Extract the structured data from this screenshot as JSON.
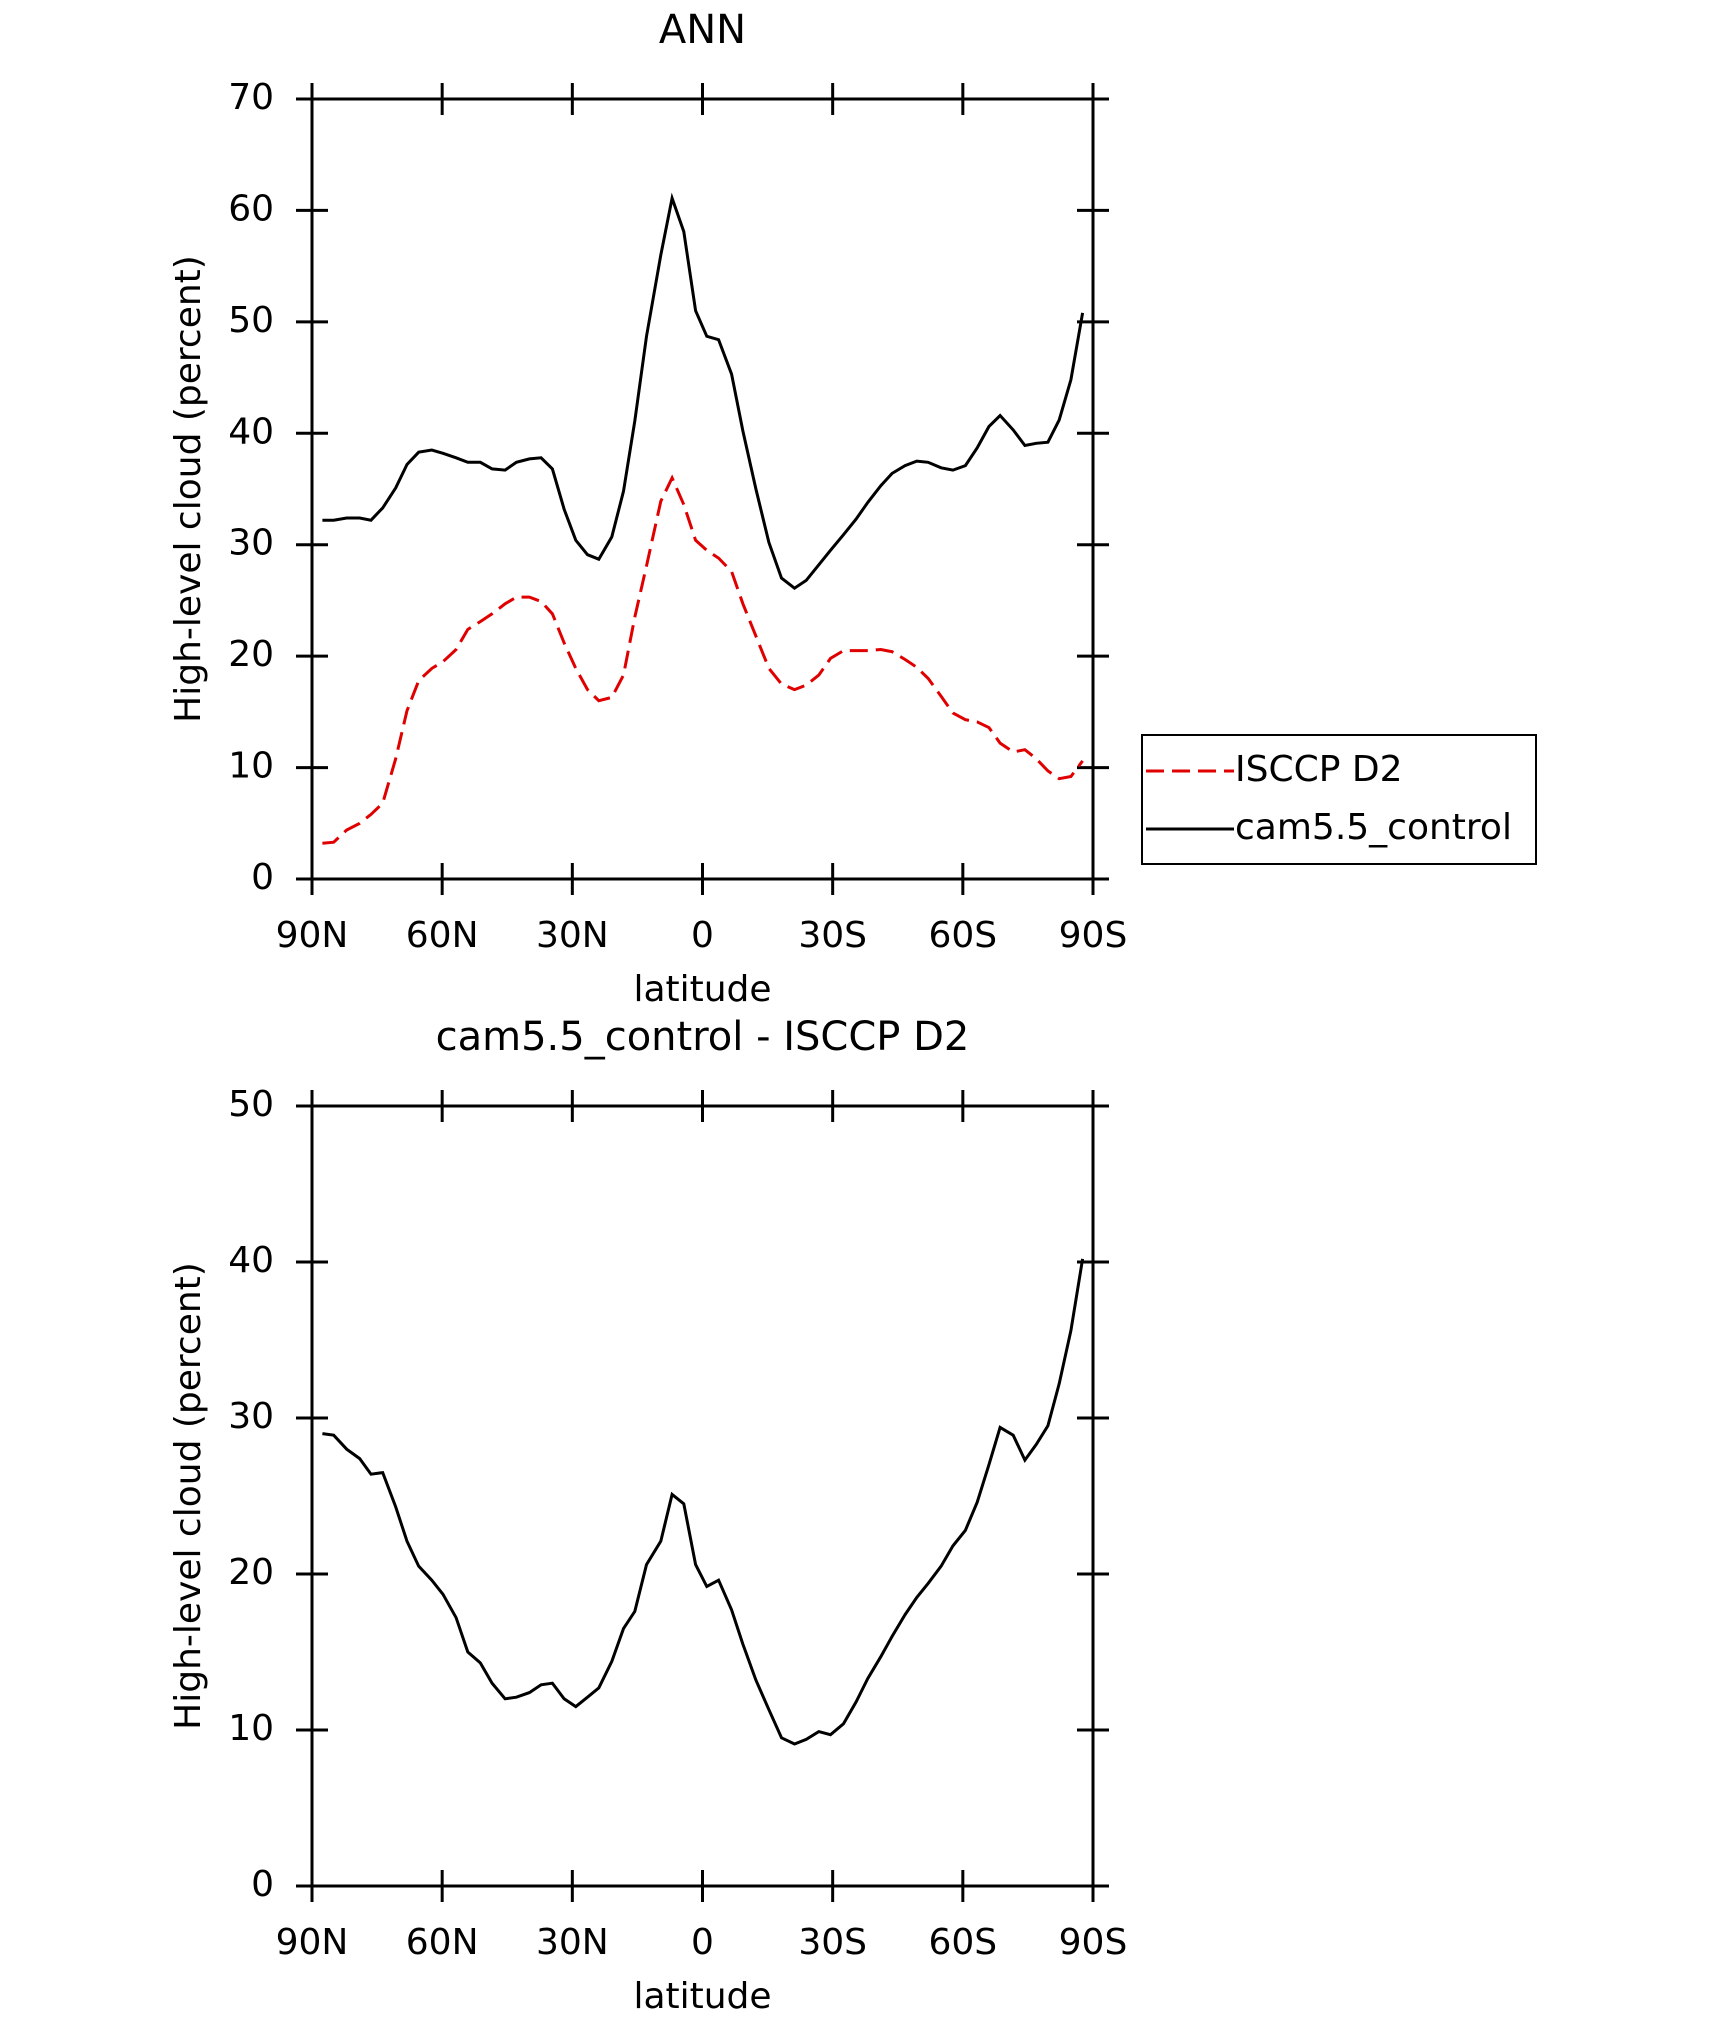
{
  "chart_data": [
    {
      "type": "line",
      "title": "ANN",
      "xlabel": "latitude",
      "ylabel": "High-level cloud (percent)",
      "xlim": [
        90,
        -90
      ],
      "xticks": [
        {
          "value": 90,
          "label": "90N"
        },
        {
          "value": 60,
          "label": "60N"
        },
        {
          "value": 30,
          "label": "30N"
        },
        0,
        {
          "value": -30,
          "label": "30S"
        },
        {
          "value": -60,
          "label": "60S"
        },
        {
          "value": -90,
          "label": "90S"
        }
      ],
      "ylim": [
        0,
        70
      ],
      "yticks": [
        0,
        10,
        20,
        30,
        40,
        50,
        60,
        70
      ],
      "legend": "right",
      "x": [
        87.6,
        85.0,
        82.0,
        79.0,
        76.4,
        73.7,
        70.7,
        68.1,
        65.4,
        62.4,
        59.8,
        56.8,
        54.1,
        51.2,
        48.5,
        45.5,
        42.9,
        39.9,
        37.2,
        34.6,
        31.9,
        29.2,
        26.5,
        23.9,
        20.9,
        18.2,
        15.6,
        12.9,
        9.6,
        7.0,
        4.3,
        1.6,
        -1.0,
        -3.7,
        -6.7,
        -9.3,
        -12.3,
        -15.3,
        -18.2,
        -21.2,
        -23.9,
        -26.8,
        -29.5,
        -32.5,
        -35.4,
        -38.1,
        -41.1,
        -43.7,
        -46.7,
        -49.4,
        -52.0,
        -55.0,
        -57.7,
        -60.6,
        -63.3,
        -66.0,
        -68.6,
        -71.6,
        -74.3,
        -76.9,
        -79.6,
        -82.2,
        -84.9,
        -87.6
      ],
      "series": [
        {
          "name": "ISCCP D2",
          "color": "#e00000",
          "style": "dashed",
          "values": [
            3.2,
            3.3,
            4.4,
            5.0,
            5.8,
            6.8,
            10.8,
            15.1,
            17.8,
            18.9,
            19.5,
            20.6,
            22.4,
            23.1,
            23.8,
            24.7,
            25.3,
            25.3,
            24.9,
            23.8,
            21.2,
            18.9,
            17.0,
            16.0,
            16.3,
            18.3,
            23.5,
            28.1,
            33.9,
            36.0,
            33.6,
            30.4,
            29.5,
            28.8,
            27.6,
            24.7,
            21.8,
            18.9,
            17.5,
            17.0,
            17.4,
            18.3,
            19.8,
            20.5,
            20.5,
            20.5,
            20.6,
            20.4,
            19.7,
            19.0,
            18.0,
            16.4,
            14.9,
            14.3,
            14.1,
            13.6,
            12.2,
            11.4,
            11.6,
            10.8,
            9.7,
            9.0,
            9.2,
            10.6
          ]
        },
        {
          "name": "cam5.5_control",
          "color": "#000000",
          "style": "solid",
          "values": [
            32.2,
            32.2,
            32.4,
            32.4,
            32.2,
            33.3,
            35.1,
            37.2,
            38.3,
            38.5,
            38.2,
            37.8,
            37.4,
            37.4,
            36.8,
            36.7,
            37.4,
            37.7,
            37.8,
            36.8,
            33.2,
            30.4,
            29.1,
            28.7,
            30.7,
            34.8,
            41.1,
            48.7,
            56.0,
            61.1,
            58.1,
            51.0,
            48.7,
            48.4,
            45.3,
            40.2,
            35.0,
            30.2,
            27.0,
            26.1,
            26.8,
            28.2,
            29.5,
            30.9,
            32.3,
            33.8,
            35.3,
            36.4,
            37.1,
            37.5,
            37.4,
            36.9,
            36.7,
            37.1,
            38.7,
            40.6,
            41.6,
            40.3,
            38.9,
            39.1,
            39.2,
            41.2,
            44.8,
            50.8
          ]
        }
      ]
    },
    {
      "type": "line",
      "title": "cam5.5_control - ISCCP D2",
      "xlabel": "latitude",
      "ylabel": "High-level cloud (percent)",
      "xlim": [
        90,
        -90
      ],
      "xticks": [
        {
          "value": 90,
          "label": "90N"
        },
        {
          "value": 60,
          "label": "60N"
        },
        {
          "value": 30,
          "label": "30N"
        },
        0,
        {
          "value": -30,
          "label": "30S"
        },
        {
          "value": -60,
          "label": "60S"
        },
        {
          "value": -90,
          "label": "90S"
        }
      ],
      "ylim": [
        0,
        50
      ],
      "yticks": [
        0,
        10,
        20,
        30,
        40,
        50
      ],
      "x": [
        87.6,
        85.0,
        82.0,
        79.0,
        76.4,
        73.7,
        70.7,
        68.1,
        65.4,
        62.4,
        59.8,
        56.8,
        54.1,
        51.2,
        48.5,
        45.5,
        42.9,
        39.9,
        37.2,
        34.6,
        31.9,
        29.2,
        26.5,
        23.9,
        20.9,
        18.2,
        15.6,
        12.9,
        9.6,
        7.0,
        4.3,
        1.6,
        -1.0,
        -3.7,
        -6.7,
        -9.3,
        -12.3,
        -15.3,
        -18.2,
        -21.2,
        -23.9,
        -26.8,
        -29.5,
        -32.5,
        -35.4,
        -38.1,
        -41.1,
        -43.7,
        -46.7,
        -49.4,
        -52.0,
        -55.0,
        -57.7,
        -60.6,
        -63.3,
        -66.0,
        -68.6,
        -71.6,
        -74.3,
        -76.9,
        -79.6,
        -82.2,
        -84.9,
        -87.6
      ],
      "series": [
        {
          "color": "#000000",
          "style": "solid",
          "values": [
            29.0,
            28.9,
            28.0,
            27.4,
            26.4,
            26.5,
            24.3,
            22.1,
            20.5,
            19.6,
            18.7,
            17.2,
            15.0,
            14.3,
            13.0,
            12.0,
            12.1,
            12.4,
            12.9,
            13.0,
            12.0,
            11.5,
            12.1,
            12.7,
            14.4,
            16.5,
            17.6,
            20.6,
            22.1,
            25.1,
            24.5,
            20.6,
            19.2,
            19.6,
            17.7,
            15.5,
            13.2,
            11.3,
            9.5,
            9.1,
            9.4,
            9.9,
            9.7,
            10.4,
            11.8,
            13.3,
            14.7,
            16.0,
            17.4,
            18.5,
            19.4,
            20.5,
            21.8,
            22.8,
            24.6,
            27.0,
            29.4,
            28.9,
            27.3,
            28.3,
            29.5,
            32.2,
            35.6,
            40.2
          ]
        }
      ]
    }
  ]
}
